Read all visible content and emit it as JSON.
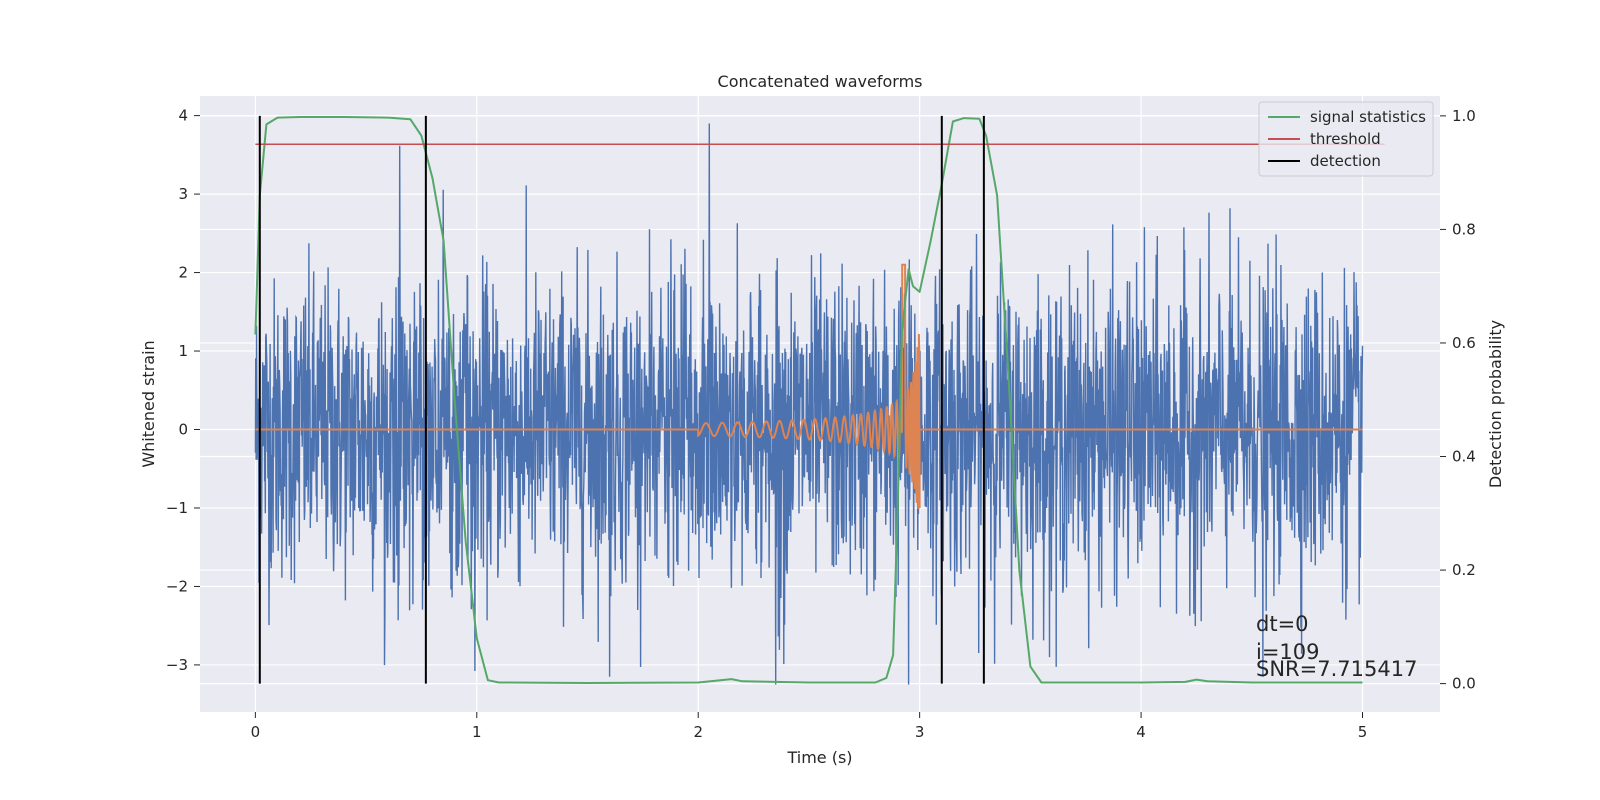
{
  "chart_data": {
    "type": "line",
    "title": "Concatenated waveforms",
    "xlabel": "Time (s)",
    "ylabel": "Whitened strain",
    "ylabel_right": "Detection probability",
    "xlim": [
      -0.25,
      5.35
    ],
    "ylim": [
      -3.6,
      4.25
    ],
    "ylim_right": [
      -0.05,
      1.035
    ],
    "x_ticks": [
      0,
      1,
      2,
      3,
      4,
      5
    ],
    "x_tick_labels": [
      "0",
      "1",
      "2",
      "3",
      "4",
      "5"
    ],
    "y_ticks": [
      4,
      3,
      2,
      1,
      0,
      -1,
      -2,
      -3
    ],
    "y_tick_labels": [
      "4",
      "3",
      "2",
      "1",
      "0",
      "−1",
      "−2",
      "−3"
    ],
    "y_right_ticks": [
      1.0,
      0.8,
      0.6,
      0.4,
      0.2,
      0.0
    ],
    "y_right_tick_labels": [
      "1.0",
      "0.8",
      "0.6",
      "0.4",
      "0.2",
      "0.0"
    ],
    "grid": true,
    "legend_position": "top-right",
    "legend": [
      {
        "label": "signal statistics",
        "color": "#55a868"
      },
      {
        "label": "threshold",
        "color": "#c44e52"
      },
      {
        "label": "detection",
        "color": "#000000"
      }
    ],
    "colors": {
      "strain": "#4c72b0",
      "template": "#dd8452",
      "signal_statistics": "#55a868",
      "threshold": "#c44e52",
      "detection": "#000000",
      "background": "#eaeaf2",
      "grid": "#ffffff"
    },
    "strain": {
      "x_range": [
        0,
        5
      ],
      "amplitude_range": [
        -3.25,
        3.9
      ],
      "peak_values": [
        {
          "x": 2.05,
          "y": 3.9
        },
        {
          "x": 2.35,
          "y": -3.25
        },
        {
          "x": 2.95,
          "y": -3.25
        },
        {
          "x": 1.6,
          "y": -3.15
        },
        {
          "x": 4.55,
          "y": -3.15
        }
      ]
    },
    "template_chirp": {
      "x_start": 2.0,
      "x_end": 3.0,
      "amplitude_start": 0.08,
      "amplitude_peak": 2.1,
      "peak_x": 2.93,
      "min_y": -1.0,
      "baseline": 0
    },
    "signal_statistics": {
      "points": [
        [
          0,
          0.615
        ],
        [
          0.02,
          0.86
        ],
        [
          0.05,
          0.985
        ],
        [
          0.1,
          0.997
        ],
        [
          0.2,
          0.998
        ],
        [
          0.4,
          0.998
        ],
        [
          0.6,
          0.997
        ],
        [
          0.7,
          0.994
        ],
        [
          0.75,
          0.965
        ],
        [
          0.8,
          0.89
        ],
        [
          0.85,
          0.78
        ],
        [
          0.9,
          0.5
        ],
        [
          0.95,
          0.25
        ],
        [
          1.0,
          0.08
        ],
        [
          1.05,
          0.006
        ],
        [
          1.1,
          0.002
        ],
        [
          1.5,
          0.001
        ],
        [
          2.0,
          0.002
        ],
        [
          2.1,
          0.006
        ],
        [
          2.15,
          0.008
        ],
        [
          2.2,
          0.004
        ],
        [
          2.5,
          0.002
        ],
        [
          2.8,
          0.002
        ],
        [
          2.85,
          0.01
        ],
        [
          2.88,
          0.05
        ],
        [
          2.9,
          0.3
        ],
        [
          2.92,
          0.62
        ],
        [
          2.95,
          0.73
        ],
        [
          2.97,
          0.7
        ],
        [
          3.0,
          0.69
        ],
        [
          3.05,
          0.78
        ],
        [
          3.1,
          0.88
        ],
        [
          3.15,
          0.99
        ],
        [
          3.2,
          0.996
        ],
        [
          3.27,
          0.995
        ],
        [
          3.3,
          0.965
        ],
        [
          3.35,
          0.86
        ],
        [
          3.4,
          0.55
        ],
        [
          3.45,
          0.2
        ],
        [
          3.5,
          0.03
        ],
        [
          3.55,
          0.002
        ],
        [
          4.0,
          0.002
        ],
        [
          4.2,
          0.003
        ],
        [
          4.25,
          0.007
        ],
        [
          4.3,
          0.004
        ],
        [
          4.5,
          0.002
        ],
        [
          5.0,
          0.002
        ]
      ]
    },
    "threshold": {
      "value": 0.95,
      "x_range": [
        0,
        5.1
      ]
    },
    "detections": [
      0.02,
      0.77,
      3.1,
      3.29
    ],
    "detection_y_range": [
      0.0,
      1.0
    ],
    "annotation": {
      "lines": [
        "dt=0",
        "i=109",
        "SNR=7.715417"
      ]
    }
  }
}
